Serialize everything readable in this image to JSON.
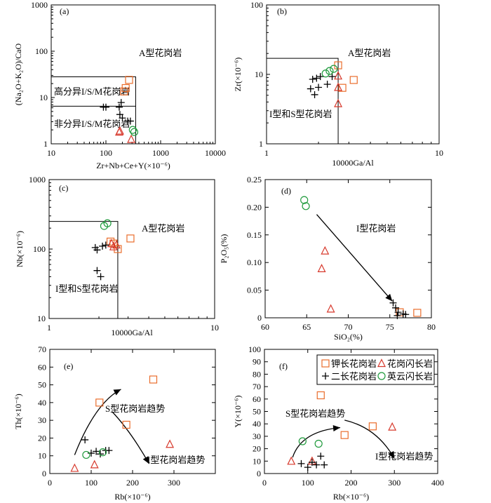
{
  "chart_data": [
    {
      "id": "a",
      "panel_label": "(a)",
      "type": "scatter",
      "xscale": "log",
      "yscale": "log",
      "xlim": [
        10,
        10000
      ],
      "ylim": [
        1,
        1000
      ],
      "xticks": [
        10,
        100,
        1000,
        10000
      ],
      "xtick_labels": [
        "10",
        "100",
        "1000",
        "10000"
      ],
      "yticks": [
        1,
        10,
        100,
        1000
      ],
      "ytick_labels": [
        "1",
        "10",
        "100",
        "1000"
      ],
      "xlabel": "Zr+Nb+Ce+Y(×10⁻⁶)",
      "ylabel": "(Na₂O+K₂O)/CaO",
      "field_labels": [
        "A型花岗岩",
        "高分异I/S/M花岗岩",
        "非分异I/S/M花岗岩"
      ],
      "boundaries": [
        [
          [
            10,
            28
          ],
          [
            350,
            28
          ],
          [
            350,
            1
          ]
        ],
        [
          [
            10,
            6.5
          ],
          [
            350,
            6.5
          ]
        ]
      ],
      "series": [
        {
          "name": "钾长花岗岩",
          "marker": "square",
          "points": [
            [
              265,
              24
            ],
            [
              230,
              16
            ],
            [
              215,
              13.5
            ]
          ]
        },
        {
          "name": "花岗闪长岩",
          "marker": "triangle",
          "points": [
            [
              180,
              1.9
            ],
            [
              290,
              1.25
            ],
            [
              175,
              1.8
            ]
          ]
        },
        {
          "name": "二长花岗岩",
          "marker": "plus",
          "points": [
            [
              90,
              6.2
            ],
            [
              100,
              6.2
            ],
            [
              175,
              6.2
            ],
            [
              180,
              4.3
            ],
            [
              200,
              3.6
            ],
            [
              250,
              3.1
            ],
            [
              280,
              3.1
            ],
            [
              190,
              7.8
            ]
          ]
        },
        {
          "name": "英云闪长岩",
          "marker": "circle",
          "points": [
            [
              310,
              2.0
            ],
            [
              330,
              1.8
            ]
          ]
        }
      ]
    },
    {
      "id": "b",
      "panel_label": "(b)",
      "type": "scatter",
      "xscale": "log",
      "yscale": "log",
      "xlim": [
        1,
        10
      ],
      "ylim": [
        1,
        100
      ],
      "xticks": [
        1,
        10
      ],
      "xtick_labels": [
        "1",
        "10"
      ],
      "yticks": [
        1,
        10,
        100
      ],
      "ytick_labels": [
        "1",
        "10",
        "100"
      ],
      "xlabel": "10000Ga/Al",
      "ylabel": "Zr(×10⁻⁶)",
      "field_labels": [
        "A型花岗岩",
        "I型和S型花岗岩"
      ],
      "boundaries": [
        [
          [
            1,
            17
          ],
          [
            2.6,
            17
          ],
          [
            2.6,
            1
          ]
        ]
      ],
      "series": [
        {
          "name": "钾长花岗岩",
          "marker": "square",
          "points": [
            [
              2.6,
              13.5
            ],
            [
              2.75,
              6.4
            ],
            [
              3.2,
              8.3
            ]
          ]
        },
        {
          "name": "花岗闪长岩",
          "marker": "triangle",
          "points": [
            [
              2.6,
              9.5
            ],
            [
              2.6,
              6.5
            ],
            [
              2.6,
              3.8
            ]
          ]
        },
        {
          "name": "二长花岗岩",
          "marker": "plus",
          "points": [
            [
              1.85,
              8.5
            ],
            [
              1.95,
              8.8
            ],
            [
              2.05,
              9.3
            ],
            [
              1.8,
              6.2
            ],
            [
              2.0,
              6.5
            ],
            [
              2.25,
              7.2
            ],
            [
              1.9,
              5.1
            ],
            [
              2.4,
              9.3
            ]
          ]
        },
        {
          "name": "英云闪长岩",
          "marker": "circle",
          "points": [
            [
              2.2,
              10.3
            ],
            [
              2.32,
              11.2
            ],
            [
              2.45,
              12.0
            ]
          ]
        }
      ]
    },
    {
      "id": "c",
      "panel_label": "(c)",
      "type": "scatter",
      "xscale": "log",
      "yscale": "log",
      "xlim": [
        1,
        10
      ],
      "ylim": [
        10,
        1000
      ],
      "xticks": [
        1,
        10
      ],
      "xtick_labels": [
        "1",
        "10"
      ],
      "yticks": [
        10,
        100,
        1000
      ],
      "ytick_labels": [
        "10",
        "100",
        "1000"
      ],
      "xlabel": "10000Ga/Al",
      "ylabel": "Nb(×10⁻⁶)",
      "field_labels": [
        "A型花岗岩",
        "I型和S型花岗岩"
      ],
      "boundaries": [
        [
          [
            1,
            250
          ],
          [
            2.6,
            250
          ],
          [
            2.6,
            10
          ]
        ]
      ],
      "series": [
        {
          "name": "钾长花岗岩",
          "marker": "square",
          "points": [
            [
              2.35,
              128
            ],
            [
              2.45,
              120
            ],
            [
              2.6,
              100
            ],
            [
              3.1,
              142
            ]
          ]
        },
        {
          "name": "花岗闪长岩",
          "marker": "triangle",
          "points": [
            [
              2.38,
              120
            ],
            [
              2.45,
              108
            ],
            [
              2.55,
              115
            ]
          ]
        },
        {
          "name": "二长花岗岩",
          "marker": "plus",
          "points": [
            [
              1.9,
              105
            ],
            [
              1.95,
              97
            ],
            [
              2.1,
              110
            ],
            [
              2.2,
              114
            ],
            [
              1.95,
              49
            ],
            [
              2.05,
              40
            ]
          ]
        },
        {
          "name": "英云闪长岩",
          "marker": "circle",
          "points": [
            [
              2.15,
              215
            ],
            [
              2.25,
              235
            ]
          ]
        }
      ]
    },
    {
      "id": "d",
      "panel_label": "(d)",
      "type": "scatter",
      "xlim": [
        60,
        80
      ],
      "ylim": [
        0,
        0.25
      ],
      "xticks": [
        60,
        65,
        70,
        75,
        80
      ],
      "xtick_labels": [
        "60",
        "65",
        "70",
        "75",
        "80"
      ],
      "yticks": [
        0,
        0.05,
        0.1,
        0.15,
        0.2,
        0.25
      ],
      "ytick_labels": [
        "0",
        "0.05",
        "0.10",
        "0.15",
        "0.20",
        "0.25"
      ],
      "xlabel": "SiO₂(%)",
      "ylabel": "P₂O₅(%)",
      "field_labels": [
        "I型花岗岩"
      ],
      "trend_arrow": [
        [
          66.2,
          0.187
        ],
        [
          75.3,
          0.03
        ]
      ],
      "series": [
        {
          "name": "钾长花岗岩",
          "marker": "square",
          "points": [
            [
              76.2,
              0.01
            ],
            [
              78.3,
              0.009
            ]
          ]
        },
        {
          "name": "花岗闪长岩",
          "marker": "triangle",
          "points": [
            [
              67.2,
              0.121
            ],
            [
              66.8,
              0.089
            ],
            [
              67.9,
              0.016
            ]
          ]
        },
        {
          "name": "二长花岗岩",
          "marker": "plus",
          "points": [
            [
              75.4,
              0.027
            ],
            [
              75.7,
              0.018
            ],
            [
              76.0,
              0.01
            ],
            [
              75.9,
              0.004
            ],
            [
              76.6,
              0.007
            ],
            [
              76.9,
              0.006
            ]
          ]
        },
        {
          "name": "英云闪长岩",
          "marker": "circle",
          "points": [
            [
              64.7,
              0.213
            ],
            [
              64.9,
              0.202
            ]
          ]
        }
      ]
    },
    {
      "id": "e",
      "panel_label": "(e)",
      "type": "scatter",
      "xlim": [
        0,
        400
      ],
      "ylim": [
        0,
        70
      ],
      "xticks": [
        0,
        100,
        200,
        300
      ],
      "xtick_labels": [
        "0",
        "100",
        "200",
        "300"
      ],
      "yticks": [
        0,
        10,
        20,
        30,
        40,
        50,
        60,
        70
      ],
      "ytick_labels": [
        "0",
        "10",
        "20",
        "30",
        "40",
        "50",
        "60",
        "70"
      ],
      "xlabel": "Rb(×10⁻⁶)",
      "ylabel": "Th(×10⁻⁶)",
      "field_labels": [
        "S型花岗岩趋势",
        "I型花岗岩趋势"
      ],
      "s_trend": [
        [
          60,
          10.5
        ],
        [
          110,
          40
        ],
        [
          172,
          47.5
        ]
      ],
      "i_trend": [
        [
          150,
          35
        ],
        [
          195,
          24
        ],
        [
          240,
          5.5
        ]
      ],
      "series": [
        {
          "name": "钾长花岗岩",
          "marker": "square",
          "points": [
            [
              120,
              40
            ],
            [
              185,
              27.5
            ],
            [
              250,
              53
            ]
          ]
        },
        {
          "name": "花岗闪长岩",
          "marker": "triangle",
          "points": [
            [
              60,
              3
            ],
            [
              108,
              5
            ],
            [
              290,
              16.5
            ]
          ]
        },
        {
          "name": "二长花岗岩",
          "marker": "plus",
          "points": [
            [
              85,
              19
            ],
            [
              100,
              11.5
            ],
            [
              112,
              12.5
            ],
            [
              122,
              11
            ],
            [
              135,
              13
            ],
            [
              143,
              13
            ]
          ]
        },
        {
          "name": "英云闪长岩",
          "marker": "circle",
          "points": [
            [
              88,
              10.5
            ],
            [
              128,
              12
            ]
          ]
        }
      ]
    },
    {
      "id": "f",
      "panel_label": "(f)",
      "type": "scatter",
      "xlim": [
        0,
        400
      ],
      "ylim": [
        0,
        100
      ],
      "xticks": [
        0,
        100,
        200,
        300,
        400
      ],
      "xtick_labels": [
        "0",
        "100",
        "200",
        "300",
        "400"
      ],
      "yticks": [
        0,
        10,
        20,
        30,
        40,
        50,
        60,
        70,
        80,
        90,
        100
      ],
      "ytick_labels": [
        "0",
        "10",
        "20",
        "30",
        "40",
        "50",
        "60",
        "70",
        "80",
        "90",
        "100"
      ],
      "xlabel": "Rb(×10⁻⁶)",
      "ylabel": "Y(×10⁻⁶)",
      "field_labels": [
        "S型花岗岩趋势",
        "I型花岗岩趋势"
      ],
      "s_trend": [
        [
          65,
          13
        ],
        [
          85,
          34
        ],
        [
          175,
          37
        ]
      ],
      "i_trend": [
        [
          185,
          43
        ],
        [
          260,
          37
        ],
        [
          300,
          12
        ]
      ],
      "legend_position": "top-right",
      "legend": [
        {
          "marker": "square",
          "label": "钾长花岗岩"
        },
        {
          "marker": "triangle",
          "label": "花岗闪长岩"
        },
        {
          "marker": "plus",
          "label": "二长花岗岩"
        },
        {
          "marker": "circle",
          "label": "英云闪长岩"
        }
      ],
      "series": [
        {
          "name": "钾长花岗岩",
          "marker": "square",
          "points": [
            [
              130,
              63
            ],
            [
              185,
              31
            ],
            [
              250,
              38
            ]
          ]
        },
        {
          "name": "花岗闪长岩",
          "marker": "triangle",
          "points": [
            [
              62,
              10
            ],
            [
              110,
              10
            ],
            [
              295,
              37.5
            ]
          ]
        },
        {
          "name": "二长花岗岩",
          "marker": "plus",
          "points": [
            [
              85,
              8
            ],
            [
              100,
              5
            ],
            [
              110,
              9
            ],
            [
              120,
              7
            ],
            [
              130,
              14
            ],
            [
              138,
              7
            ]
          ]
        },
        {
          "name": "英云闪长岩",
          "marker": "circle",
          "points": [
            [
              88,
              26
            ],
            [
              125,
              24
            ]
          ]
        }
      ]
    }
  ],
  "colors": {
    "square": "#ea6d2c",
    "triangle": "#d7392c",
    "plus": "#000000",
    "circle": "#1f9a3c"
  }
}
